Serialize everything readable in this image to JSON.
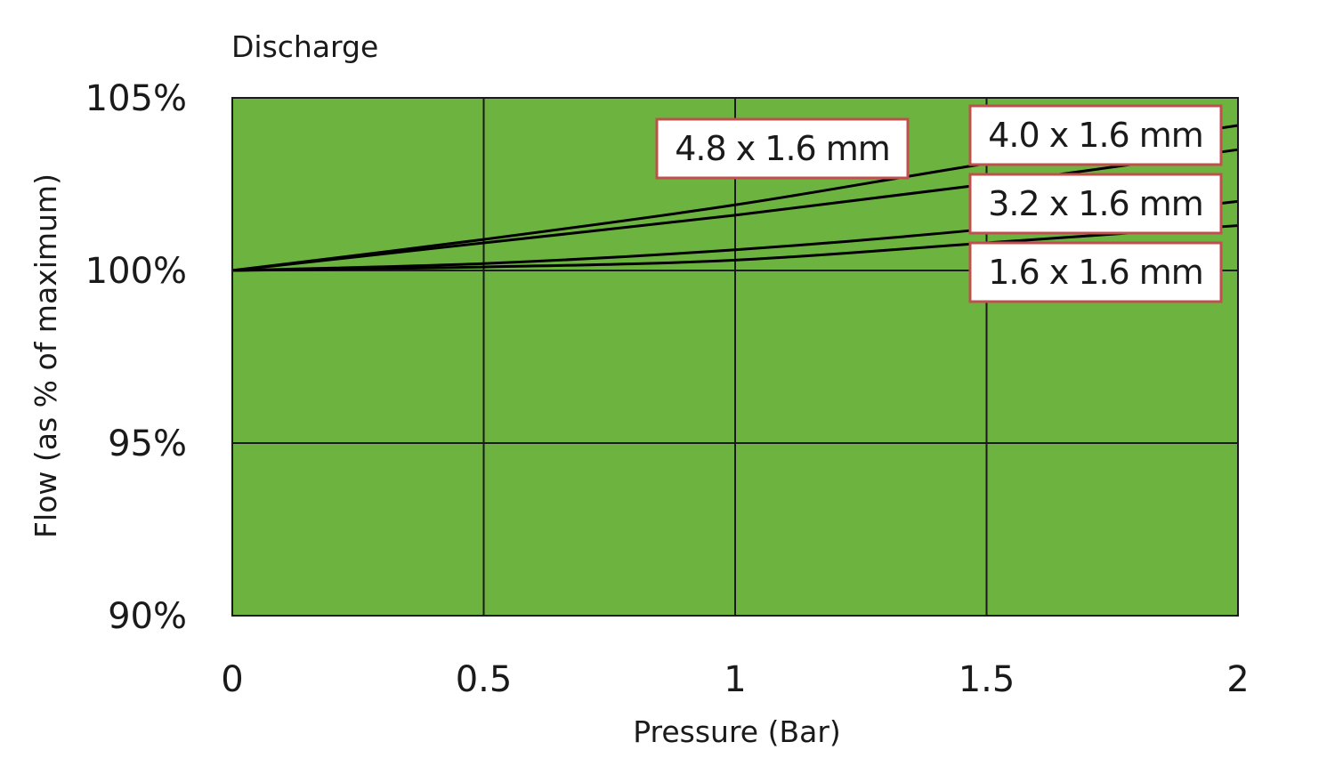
{
  "chart_data": {
    "type": "line",
    "subtitle": "Discharge",
    "xlabel": "Pressure (Bar)",
    "ylabel": "Flow (as % of maximum)",
    "xlim": [
      0,
      2
    ],
    "ylim": [
      90,
      105
    ],
    "x_ticks": [
      0,
      0.5,
      1,
      1.5,
      2
    ],
    "x_tick_labels": [
      "0",
      "0.5",
      "1",
      "1.5",
      "2"
    ],
    "y_ticks": [
      90,
      95,
      100,
      105
    ],
    "y_tick_labels": [
      "90%",
      "95%",
      "100%",
      "105%"
    ],
    "grid": true,
    "plot_background": "#6db33f",
    "line_color": "#000000",
    "label_border_color": "#c0504d",
    "x": [
      0,
      0.5,
      1,
      1.5,
      2
    ],
    "series": [
      {
        "name": "4.8 x 1.6 mm",
        "values": [
          100,
          100.9,
          101.9,
          103.1,
          104.2
        ]
      },
      {
        "name": "4.0 x 1.6 mm",
        "values": [
          100,
          100.8,
          101.6,
          102.5,
          103.5
        ]
      },
      {
        "name": "3.2 x 1.6 mm",
        "values": [
          100,
          100.2,
          100.6,
          101.2,
          102.0
        ]
      },
      {
        "name": "1.6 x 1.6 mm",
        "values": [
          100,
          100.1,
          100.3,
          100.8,
          101.3
        ]
      }
    ],
    "annotations": [
      "4.8 x 1.6 mm",
      "4.0 x 1.6 mm",
      "3.2 x 1.6 mm",
      "1.6 x 1.6 mm"
    ]
  }
}
